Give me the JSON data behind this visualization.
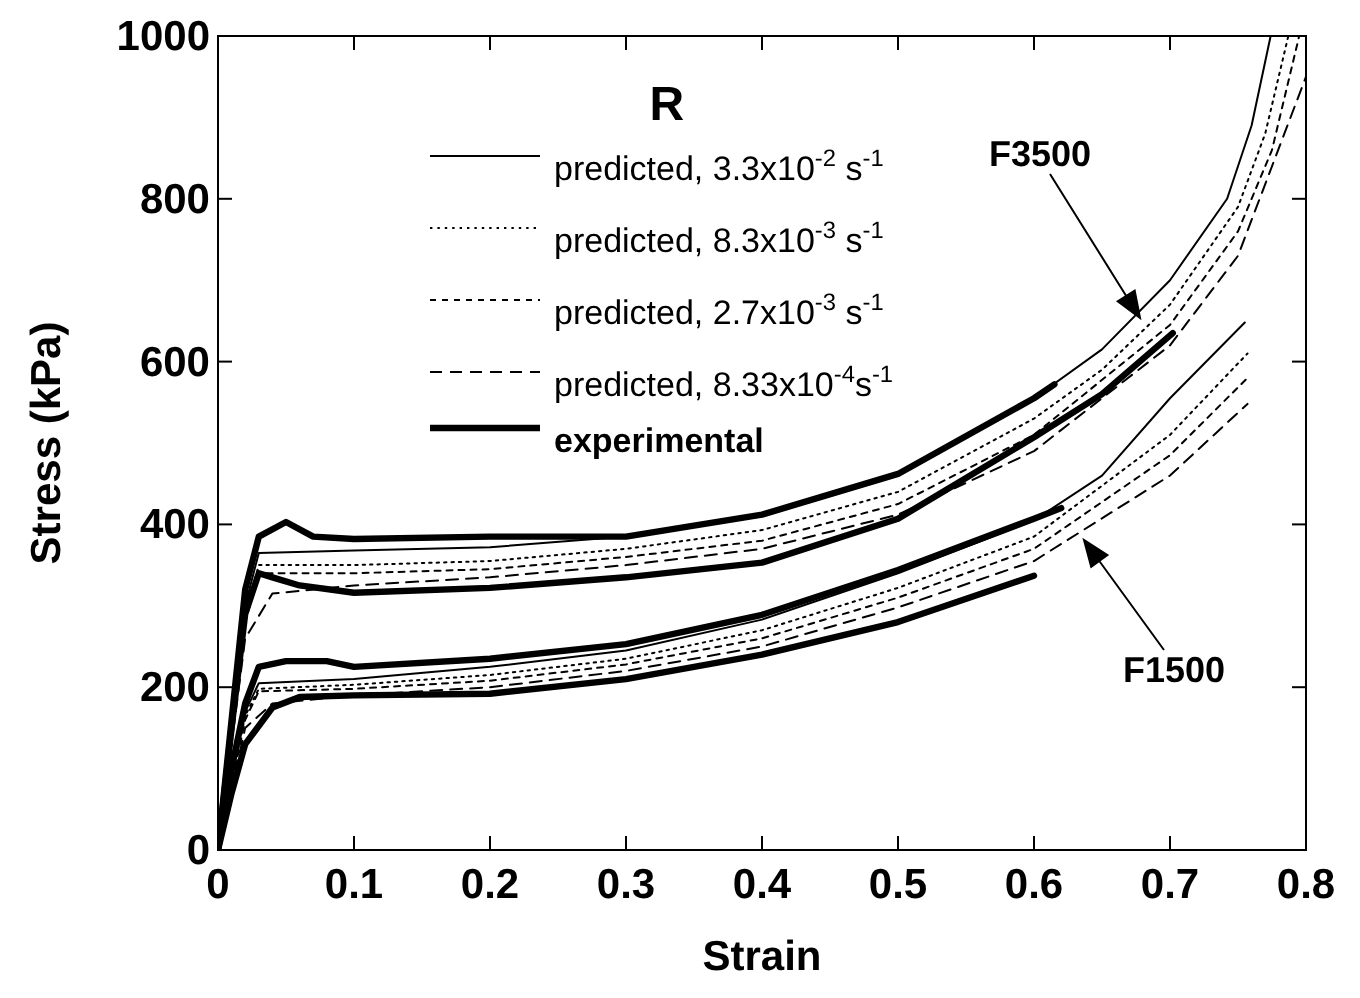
{
  "chart_data": {
    "type": "line",
    "title": "R",
    "xlabel": "Strain",
    "ylabel": "Stress (kPa)",
    "xlim": [
      0,
      0.8
    ],
    "xticks": [
      0,
      0.1,
      0.2,
      0.3,
      0.4,
      0.5,
      0.6,
      0.7,
      0.8
    ],
    "ylim": [
      0,
      1000
    ],
    "yticks": [
      0,
      200,
      400,
      600,
      800,
      1000
    ],
    "grid": false,
    "legend": "top left",
    "marker": "none",
    "annotations": [
      "F3500",
      "F1500"
    ],
    "series": [
      {
        "name": "predicted, 3.3x10$^{-2}$ s$^{-1}$",
        "color": "#000000",
        "line_style": "solid",
        "x": [
          0,
          0.01,
          0.02,
          0.03,
          0.1,
          0.2,
          0.3,
          0.4,
          0.5,
          0.6,
          0.65,
          0.7,
          0.742,
          0.76,
          0.774
        ],
        "values": [
          0,
          150,
          300,
          365,
          368,
          372,
          385,
          410,
          460,
          555,
          615,
          700,
          800,
          890,
          1000
        ]
      },
      {
        "name": "predicted, 8.3x10$^{-3}$ s$^{-1}$",
        "color": "#000000",
        "line_style": "dotted",
        "x": [
          0,
          0.01,
          0.02,
          0.03,
          0.1,
          0.2,
          0.3,
          0.4,
          0.5,
          0.6,
          0.65,
          0.7,
          0.75,
          0.77,
          0.787
        ],
        "values": [
          0,
          140,
          290,
          350,
          350,
          355,
          370,
          393,
          440,
          530,
          590,
          670,
          790,
          880,
          1000
        ]
      },
      {
        "name": "predicted, 2.7x10$^{-3}$ s$^{-1}$",
        "color": "#000000",
        "line_style": "dashed",
        "x": [
          0,
          0.01,
          0.02,
          0.03,
          0.1,
          0.2,
          0.3,
          0.4,
          0.5,
          0.6,
          0.7,
          0.75,
          0.775,
          0.795
        ],
        "values": [
          0,
          135,
          280,
          340,
          340,
          345,
          360,
          380,
          425,
          510,
          645,
          760,
          860,
          1000
        ]
      },
      {
        "name": "predicted, 8.33x10$^{-4}$s$^{-1}$",
        "color": "#000000",
        "line_style": "dashed",
        "x": [
          0,
          0.01,
          0.02,
          0.04,
          0.1,
          0.2,
          0.3,
          0.4,
          0.5,
          0.6,
          0.7,
          0.75,
          0.8
        ],
        "values": [
          0,
          130,
          260,
          315,
          325,
          335,
          350,
          370,
          412,
          490,
          620,
          730,
          950
        ]
      },
      {
        "name": "experimental",
        "color": "#000000",
        "line_style": "solid",
        "x": [
          0,
          0.01,
          0.02,
          0.03,
          0.05,
          0.07,
          0.1,
          0.2,
          0.3,
          0.4,
          0.5,
          0.6,
          0.615
        ],
        "values": [
          0,
          160,
          320,
          385,
          403,
          385,
          382,
          385,
          385,
          412,
          462,
          555,
          572
        ]
      },
      {
        "color": "#000000",
        "line_style": "solid",
        "x": [
          0,
          0.01,
          0.02,
          0.03,
          0.1,
          0.2,
          0.3,
          0.4,
          0.5,
          0.6,
          0.65,
          0.7,
          0.755
        ],
        "values": [
          0,
          90,
          170,
          205,
          210,
          225,
          245,
          283,
          340,
          405,
          460,
          555,
          648
        ]
      },
      {
        "color": "#000000",
        "line_style": "dotted",
        "x": [
          0,
          0.01,
          0.02,
          0.03,
          0.1,
          0.2,
          0.3,
          0.4,
          0.5,
          0.6,
          0.7,
          0.757
        ],
        "values": [
          0,
          85,
          165,
          198,
          203,
          215,
          235,
          270,
          322,
          385,
          510,
          610
        ]
      },
      {
        "color": "#000000",
        "line_style": "dashed",
        "x": [
          0,
          0.01,
          0.02,
          0.03,
          0.1,
          0.2,
          0.3,
          0.4,
          0.5,
          0.6,
          0.7,
          0.757
        ],
        "values": [
          0,
          80,
          160,
          195,
          198,
          208,
          228,
          260,
          310,
          370,
          485,
          580
        ]
      },
      {
        "color": "#000000",
        "line_style": "dashed",
        "x": [
          0,
          0.01,
          0.02,
          0.04,
          0.1,
          0.2,
          0.3,
          0.4,
          0.5,
          0.6,
          0.7,
          0.757
        ],
        "values": [
          0,
          75,
          150,
          180,
          190,
          200,
          220,
          250,
          298,
          355,
          460,
          548
        ]
      },
      {
        "color": "#000000",
        "line_style": "solid",
        "x": [
          0,
          0.01,
          0.02,
          0.03,
          0.04,
          0.06,
          0.1,
          0.2,
          0.3,
          0.4,
          0.5,
          0.6,
          0.65,
          0.702
        ],
        "values": [
          0,
          150,
          290,
          340,
          335,
          325,
          316,
          322,
          335,
          353,
          407,
          507,
          560,
          635
        ]
      },
      {
        "color": "#000000",
        "line_style": "solid",
        "x": [
          0,
          0.01,
          0.02,
          0.03,
          0.05,
          0.08,
          0.1,
          0.2,
          0.3,
          0.4,
          0.5,
          0.6,
          0.62
        ],
        "values": [
          0,
          100,
          180,
          225,
          232,
          232,
          225,
          235,
          253,
          289,
          344,
          407,
          420
        ]
      },
      {
        "color": "#000000",
        "line_style": "solid",
        "x": [
          0,
          0.01,
          0.02,
          0.04,
          0.06,
          0.1,
          0.2,
          0.3,
          0.4,
          0.5,
          0.6
        ],
        "values": [
          0,
          70,
          130,
          175,
          188,
          190,
          192,
          210,
          240,
          280,
          337
        ]
      }
    ]
  }
}
